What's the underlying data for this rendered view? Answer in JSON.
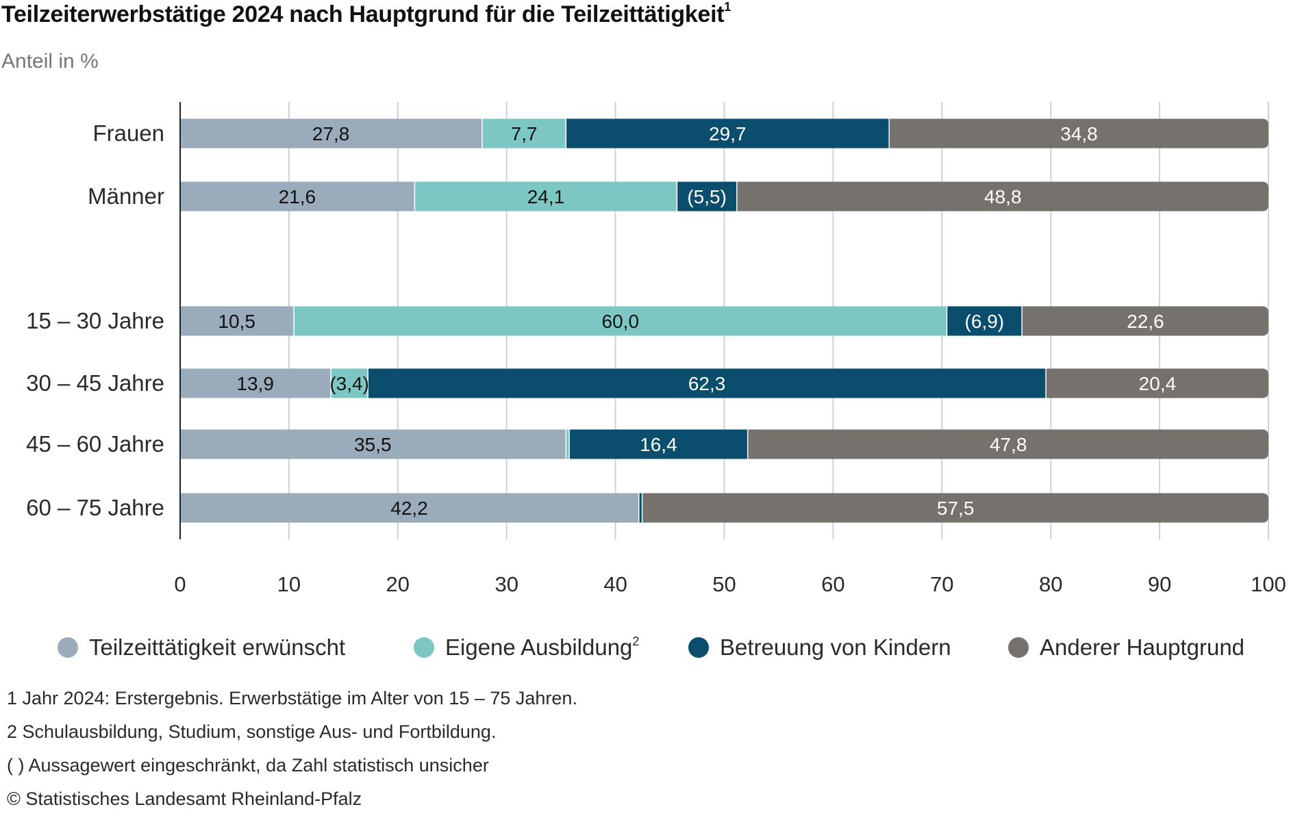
{
  "header": {
    "title": "Teilzeiterwerbstätige 2024 nach Hauptgrund für die Teilzeittätigkeit",
    "title_superscript": "1",
    "subtitle": "Anteil in %"
  },
  "colors": {
    "teilzeit_erwuenscht": "#9aabbb",
    "eigene_ausbildung": "#7cc7c3",
    "betreuung_kinder": "#0a4d6d",
    "anderer_hauptgrund": "#75716c",
    "grid": "#d0d0d0",
    "axis": "#222222"
  },
  "legend": [
    {
      "label": "Teilzeittätigkeit erwünscht",
      "superscript": "",
      "color": "#9aabbb"
    },
    {
      "label": "Eigene Ausbildung",
      "superscript": "2",
      "color": "#7cc7c3"
    },
    {
      "label": "Betreuung von Kindern",
      "superscript": "",
      "color": "#0a4d6d"
    },
    {
      "label": "Anderer Hauptgrund",
      "superscript": "",
      "color": "#75716c"
    }
  ],
  "footnotes": [
    "1 Jahr 2024: Erstergebnis. Erwerbstätige im Alter von 15 – 75 Jahren.",
    "2 Schulausbildung, Studium, sonstige Aus- und Fortbildung.",
    "( ) Aussagewert eingeschränkt, da Zahl statistisch unsicher",
    "© Statistisches Landesamt Rheinland-Pfalz"
  ],
  "chart_data": {
    "type": "bar",
    "orientation": "horizontal",
    "stacked": true,
    "title": "Teilzeiterwerbstätige 2024 nach Hauptgrund für die Teilzeittätigkeit",
    "subtitle": "Anteil in %",
    "xlabel": "",
    "ylabel": "",
    "xlim": [
      0,
      100
    ],
    "xticks": [
      0,
      10,
      20,
      30,
      40,
      50,
      60,
      70,
      80,
      90,
      100
    ],
    "xtick_labels": [
      "0",
      "10",
      "20",
      "30",
      "40",
      "50",
      "60",
      "70",
      "80",
      "90",
      "100"
    ],
    "grid": true,
    "legend_position": "bottom",
    "groups": [
      [
        "Frauen",
        "Männer"
      ],
      [
        "15 – 30 Jahre",
        "30 – 45 Jahre",
        "45 – 60 Jahre",
        "60 – 75 Jahre"
      ]
    ],
    "categories": [
      "Frauen",
      "Männer",
      "15 – 30 Jahre",
      "30 – 45 Jahre",
      "45 – 60 Jahre",
      "60 – 75 Jahre"
    ],
    "series": [
      {
        "name": "Teilzeittätigkeit erwünscht",
        "color": "#9aabbb",
        "text_color": "#111111",
        "values": [
          27.8,
          21.6,
          10.5,
          13.9,
          35.5,
          42.2
        ],
        "labels": [
          "27,8",
          "21,6",
          "10,5",
          "13,9",
          "35,5",
          "42,2"
        ]
      },
      {
        "name": "Eigene Ausbildung",
        "color": "#7cc7c3",
        "text_color": "#111111",
        "values": [
          7.7,
          24.1,
          60.0,
          3.4,
          0.3,
          null
        ],
        "labels": [
          "7,7",
          "24,1",
          "60,0",
          "(3,4)",
          "",
          ""
        ]
      },
      {
        "name": "Betreuung von Kindern",
        "color": "#0a4d6d",
        "text_color": "#ffffff",
        "values": [
          29.7,
          5.5,
          6.9,
          62.3,
          16.4,
          0.3
        ],
        "labels": [
          "29,7",
          "(5,5)",
          "(6,9)",
          "62,3",
          "16,4",
          ""
        ]
      },
      {
        "name": "Anderer Hauptgrund",
        "color": "#75716c",
        "text_color": "#ffffff",
        "values": [
          34.8,
          48.8,
          22.6,
          20.4,
          47.8,
          57.5
        ],
        "labels": [
          "34,8",
          "48,8",
          "22,6",
          "20,4",
          "47,8",
          "57,5"
        ]
      }
    ]
  }
}
